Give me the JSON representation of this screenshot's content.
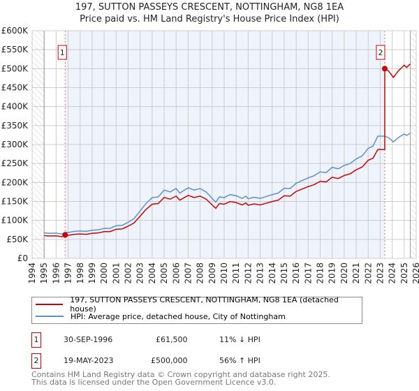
{
  "chart_data": {
    "type": "line",
    "title": "197, SUTTON PASSEYS CRESCENT, NOTTINGHAM, NG8 1EA",
    "subtitle": "Price paid vs. HM Land Registry's House Price Index (HPI)",
    "xlim": [
      1994,
      2026
    ],
    "ylim": [
      0,
      600000
    ],
    "x_ticks": [
      "1994",
      "1995",
      "1996",
      "1997",
      "1998",
      "1999",
      "2000",
      "2001",
      "2002",
      "2003",
      "2004",
      "2005",
      "2006",
      "2007",
      "2008",
      "2009",
      "2010",
      "2011",
      "2012",
      "2013",
      "2014",
      "2015",
      "2016",
      "2017",
      "2018",
      "2019",
      "2020",
      "2021",
      "2022",
      "2023",
      "2024",
      "2025",
      "2026"
    ],
    "y_ticks": [
      {
        "v": 0,
        "label": "£0"
      },
      {
        "v": 50000,
        "label": "£50K"
      },
      {
        "v": 100000,
        "label": "£100K"
      },
      {
        "v": 150000,
        "label": "£150K"
      },
      {
        "v": 200000,
        "label": "£200K"
      },
      {
        "v": 250000,
        "label": "£250K"
      },
      {
        "v": 300000,
        "label": "£300K"
      },
      {
        "v": 350000,
        "label": "£350K"
      },
      {
        "v": 400000,
        "label": "£400K"
      },
      {
        "v": 450000,
        "label": "£450K"
      },
      {
        "v": 500000,
        "label": "£500K"
      },
      {
        "v": 550000,
        "label": "£550K"
      },
      {
        "v": 600000,
        "label": "£600K"
      }
    ],
    "grid": true,
    "data_start": 1995,
    "data_end": 2025.5,
    "hpi_series": {
      "name": "HPI: Average price, detached house, City of Nottingham",
      "color": "#5b8fd0",
      "points": [
        [
          1995,
          67000
        ],
        [
          1995.5,
          66000
        ],
        [
          1996,
          66500
        ],
        [
          1996.5,
          64000
        ],
        [
          1996.75,
          69000
        ],
        [
          1997,
          68000
        ],
        [
          1997.5,
          71000
        ],
        [
          1998,
          72000
        ],
        [
          1998.5,
          71000
        ],
        [
          1999,
          74000
        ],
        [
          1999.5,
          75000
        ],
        [
          2000,
          79000
        ],
        [
          2000.5,
          79000
        ],
        [
          2001,
          86000
        ],
        [
          2001.5,
          87000
        ],
        [
          2002,
          95000
        ],
        [
          2002.5,
          105000
        ],
        [
          2003,
          125000
        ],
        [
          2003.5,
          145000
        ],
        [
          2004,
          160000
        ],
        [
          2004.5,
          162000
        ],
        [
          2005,
          180000
        ],
        [
          2005.5,
          175000
        ],
        [
          2006,
          184000
        ],
        [
          2006.3,
          172000
        ],
        [
          2007,
          186000
        ],
        [
          2007.5,
          180000
        ],
        [
          2008,
          184000
        ],
        [
          2008.5,
          175000
        ],
        [
          2009,
          158000
        ],
        [
          2009.3,
          148000
        ],
        [
          2009.6,
          162000
        ],
        [
          2010,
          160000
        ],
        [
          2010.5,
          168000
        ],
        [
          2011,
          165000
        ],
        [
          2011.5,
          158000
        ],
        [
          2011.8,
          164000
        ],
        [
          2012,
          157000
        ],
        [
          2012.5,
          161000
        ],
        [
          2013,
          158000
        ],
        [
          2013.5,
          163000
        ],
        [
          2014,
          168000
        ],
        [
          2014.5,
          172000
        ],
        [
          2015,
          185000
        ],
        [
          2015.5,
          184000
        ],
        [
          2016,
          198000
        ],
        [
          2016.5,
          205000
        ],
        [
          2017,
          212000
        ],
        [
          2017.5,
          218000
        ],
        [
          2018,
          228000
        ],
        [
          2018.5,
          226000
        ],
        [
          2019,
          240000
        ],
        [
          2019.5,
          236000
        ],
        [
          2020,
          245000
        ],
        [
          2020.5,
          250000
        ],
        [
          2021,
          262000
        ],
        [
          2021.5,
          270000
        ],
        [
          2022,
          290000
        ],
        [
          2022.4,
          296000
        ],
        [
          2022.8,
          322000
        ],
        [
          2023.38,
          322000
        ],
        [
          2023.7,
          318000
        ],
        [
          2024.1,
          307000
        ],
        [
          2024.5,
          318000
        ],
        [
          2025,
          328000
        ],
        [
          2025.2,
          324000
        ],
        [
          2025.5,
          330000
        ]
      ]
    },
    "price_series": {
      "name": "197, SUTTON PASSEYS CRESCENT, NOTTINGHAM, NG8 1EA (detached house)",
      "color": "#cc0000"
    },
    "sales": [
      {
        "id": "1",
        "year": 1996.75,
        "price": 61500
      },
      {
        "id": "2",
        "year": 2023.38,
        "price": 500000
      }
    ]
  },
  "legend": {
    "price_label": "197, SUTTON PASSEYS CRESCENT, NOTTINGHAM, NG8 1EA (detached house)",
    "hpi_label": "HPI: Average price, detached house, City of Nottingham"
  },
  "transactions": [
    {
      "id": "1",
      "date": "30-SEP-1996",
      "price": "£61,500",
      "hpi": "11% ↓ HPI"
    },
    {
      "id": "2",
      "date": "19-MAY-2023",
      "price": "£500,000",
      "hpi": "56% ↑ HPI"
    }
  ],
  "footer": {
    "line1": "Contains HM Land Registry data © Crown copyright and database right 2025.",
    "line2": "This data is licensed under the Open Government Licence v3.0."
  }
}
